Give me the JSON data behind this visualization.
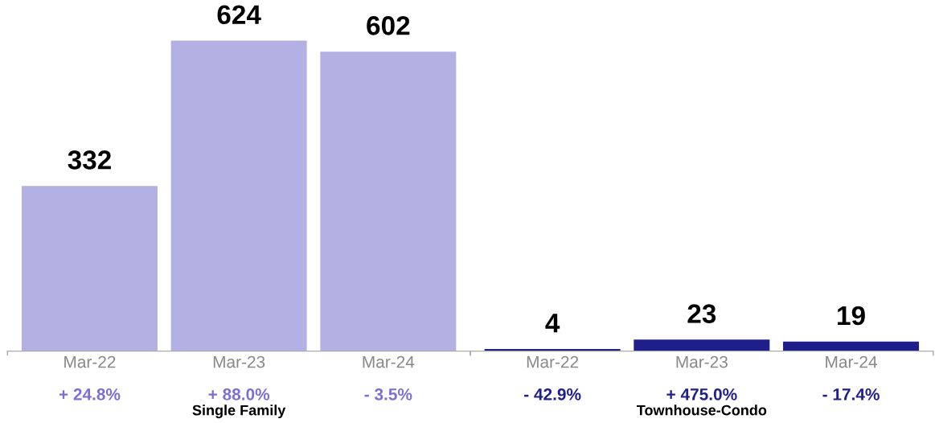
{
  "chart_data": [
    {
      "type": "bar",
      "categories": [
        "Mar-22",
        "Mar-23",
        "Mar-24"
      ],
      "values": [
        332,
        624,
        602
      ],
      "color": "#b3b1e3",
      "data_labels": true,
      "xlabel": "Single Family",
      "annotations": [
        "+ 24.8%",
        "+ 88.0%",
        "- 3.5%"
      ]
    },
    {
      "type": "bar",
      "categories": [
        "Mar-22",
        "Mar-23",
        "Mar-24"
      ],
      "values": [
        4,
        23,
        19
      ],
      "color": "#1f1f8c",
      "data_labels": true,
      "xlabel": "Townhouse-Condo",
      "annotations": [
        "- 42.9%",
        "+ 475.0%",
        "- 17.4%"
      ]
    }
  ]
}
